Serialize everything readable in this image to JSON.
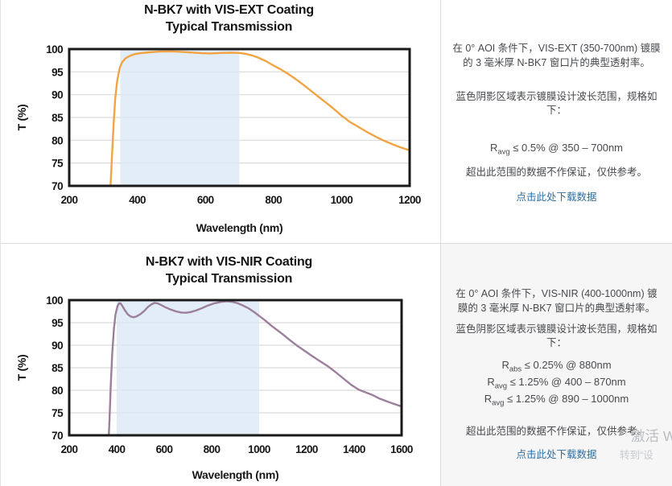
{
  "chart_data": [
    {
      "type": "line",
      "title": "N-BK7 with VIS-EXT Coating",
      "subtitle": "Typical Transmission",
      "xlabel": "Wavelength (nm)",
      "ylabel": "T (%)",
      "xlim": [
        200,
        1200
      ],
      "ylim": [
        70,
        100
      ],
      "xticks": [
        200,
        400,
        600,
        800,
        1000,
        1200
      ],
      "yticks": [
        70,
        75,
        80,
        85,
        90,
        95,
        100
      ],
      "grid": "horizontal",
      "legend": "none",
      "shaded_band_nm": [
        350,
        700
      ],
      "series": [
        {
          "name": "VIS-EXT coated N-BK7 transmission",
          "color": "#F2A444",
          "points": [
            [
              300,
              55
            ],
            [
              312,
              61
            ],
            [
              318,
              66
            ],
            [
              322,
              71
            ],
            [
              326,
              77
            ],
            [
              330,
              83
            ],
            [
              335,
              89
            ],
            [
              341,
              93
            ],
            [
              348,
              95.8
            ],
            [
              356,
              97.2
            ],
            [
              366,
              98
            ],
            [
              378,
              98.5
            ],
            [
              392,
              98.9
            ],
            [
              410,
              99.1
            ],
            [
              435,
              99.3
            ],
            [
              465,
              99.45
            ],
            [
              500,
              99.5
            ],
            [
              530,
              99.4
            ],
            [
              560,
              99.25
            ],
            [
              590,
              99.1
            ],
            [
              615,
              99.05
            ],
            [
              645,
              99.15
            ],
            [
              675,
              99.2
            ],
            [
              700,
              99.15
            ],
            [
              718,
              98.95
            ],
            [
              738,
              98.6
            ],
            [
              758,
              98.05
            ],
            [
              778,
              97.35
            ],
            [
              800,
              96.4
            ],
            [
              820,
              95.6
            ],
            [
              840,
              94.7
            ],
            [
              862,
              93.6
            ],
            [
              884,
              92.4
            ],
            [
              906,
              91.1
            ],
            [
              928,
              89.8
            ],
            [
              950,
              88.5
            ],
            [
              972,
              87.2
            ],
            [
              1000,
              85.4
            ],
            [
              1025,
              84
            ],
            [
              1050,
              82.9
            ],
            [
              1075,
              81.8
            ],
            [
              1100,
              80.8
            ],
            [
              1125,
              79.9
            ],
            [
              1150,
              79.1
            ],
            [
              1175,
              78.4
            ],
            [
              1200,
              77.8
            ]
          ]
        }
      ]
    },
    {
      "type": "line",
      "title": "N-BK7 with VIS-NIR Coating",
      "subtitle": "Typical Transmission",
      "xlabel": "Wavelength (nm)",
      "ylabel": "T (%)",
      "xlim": [
        200,
        1600
      ],
      "ylim": [
        70,
        100
      ],
      "xticks": [
        200,
        400,
        600,
        800,
        1000,
        1200,
        1400,
        1600
      ],
      "yticks": [
        70,
        75,
        80,
        85,
        90,
        95,
        100
      ],
      "grid": "horizontal",
      "legend": "none",
      "shaded_band_nm": [
        400,
        1000
      ],
      "series": [
        {
          "name": "VIS-NIR coated N-BK7 transmission",
          "color": "#9C7F9C",
          "points": [
            [
              352,
              56
            ],
            [
              360,
              63
            ],
            [
              366,
              69
            ],
            [
              370,
              74
            ],
            [
              375,
              81
            ],
            [
              381,
              88
            ],
            [
              388,
              93.5
            ],
            [
              395,
              96.8
            ],
            [
              403,
              98.6
            ],
            [
              410,
              99.3
            ],
            [
              416,
              99.3
            ],
            [
              424,
              98.7
            ],
            [
              434,
              97.8
            ],
            [
              446,
              96.9
            ],
            [
              458,
              96.4
            ],
            [
              470,
              96.2
            ],
            [
              484,
              96.4
            ],
            [
              500,
              96.9
            ],
            [
              516,
              97.6
            ],
            [
              532,
              98.5
            ],
            [
              548,
              99.1
            ],
            [
              560,
              99.4
            ],
            [
              572,
              99.3
            ],
            [
              588,
              98.9
            ],
            [
              606,
              98.4
            ],
            [
              628,
              97.9
            ],
            [
              650,
              97.5
            ],
            [
              672,
              97.25
            ],
            [
              692,
              97.2
            ],
            [
              712,
              97.35
            ],
            [
              734,
              97.7
            ],
            [
              758,
              98.2
            ],
            [
              784,
              98.8
            ],
            [
              812,
              99.3
            ],
            [
              840,
              99.6
            ],
            [
              865,
              99.75
            ],
            [
              888,
              99.6
            ],
            [
              910,
              99.3
            ],
            [
              932,
              98.8
            ],
            [
              955,
              98.2
            ],
            [
              978,
              97.4
            ],
            [
              1000,
              96.5
            ],
            [
              1025,
              95.5
            ],
            [
              1050,
              94.4
            ],
            [
              1075,
              93.4
            ],
            [
              1100,
              92.4
            ],
            [
              1130,
              91.1
            ],
            [
              1160,
              89.9
            ],
            [
              1190,
              88.8
            ],
            [
              1220,
              87.7
            ],
            [
              1255,
              86.5
            ],
            [
              1290,
              85.3
            ],
            [
              1320,
              84.1
            ],
            [
              1355,
              82.6
            ],
            [
              1390,
              81.1
            ],
            [
              1420,
              80.1
            ],
            [
              1445,
              79.6
            ],
            [
              1475,
              79
            ],
            [
              1505,
              78.2
            ],
            [
              1550,
              77.3
            ],
            [
              1600,
              76.4
            ]
          ]
        }
      ]
    }
  ],
  "panels": [
    {
      "description": "在 0° AOI 条件下，VIS-EXT (350-700nm) 镀膜的 3 毫米厚 N-BK7 窗口片的典型透射率。",
      "shading_note": "蓝色阴影区域表示镀膜设计波长范围，规格如下：",
      "specs": [
        {
          "base": "R",
          "sub": "avg",
          "text": " ≤ 0.5% @ 350 – 700nm"
        }
      ],
      "disclaimer": "超出此范围的数据不作保证，仅供参考。",
      "download_label": "点击此处下载数据"
    },
    {
      "description": "在 0° AOI 条件下，VIS-NIR (400-1000nm) 镀膜的 3 毫米厚 N-BK7 窗口片的典型透射率。",
      "shading_note": "蓝色阴影区域表示镀膜设计波长范围，规格如下：",
      "specs": [
        {
          "base": "R",
          "sub": "abs",
          "text": " ≤ 0.25% @ 880nm"
        },
        {
          "base": "R",
          "sub": "avg",
          "text": " ≤ 1.25% @ 400 – 870nm"
        },
        {
          "base": "R",
          "sub": "avg",
          "text": " ≤ 1.25% @ 890 – 1000nm"
        }
      ],
      "disclaimer": "超出此范围的数据不作保证，仅供参考。",
      "download_label": "点击此处下载数据"
    }
  ],
  "watermark": {
    "line1": "激活 W",
    "line2": "转到“设"
  },
  "colors": {
    "band": "#DCE9F5",
    "grid": "#D9D9D9",
    "plot_border": "#1A1A1A",
    "curve_vis_ext": "#F2A444",
    "curve_vis_nir": "#9C7F9C",
    "link": "#2E6DA4",
    "panel_bg_bottom": "#F6F6F6"
  }
}
